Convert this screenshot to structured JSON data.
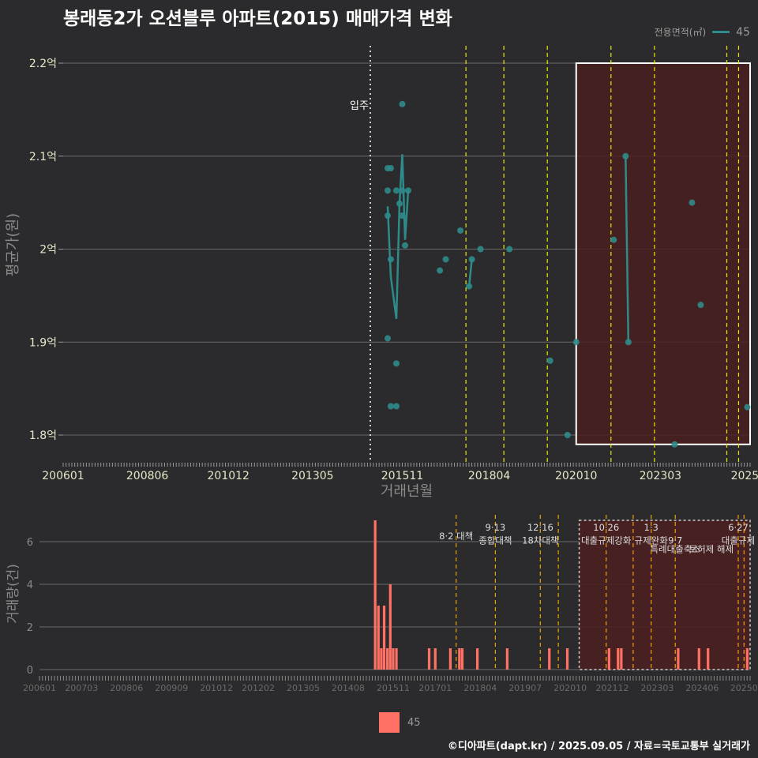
{
  "title": "봉래동2가 오션블루 아파트(2015) 매매가격 변화",
  "legend": {
    "title": "전용면적(㎡)",
    "label": "45"
  },
  "footer": "©디아파트(dapt.kr) / 2025.09.05 / 자료=국토교통부 실거래가",
  "colors": {
    "bg": "#2b2b2d",
    "price": "#2e8b8b",
    "volume": "#ff7065",
    "policy_top": "#e8e800",
    "policy_bottom": "#f0a000",
    "highlight_fill": "#4a1f20"
  },
  "chart_data": [
    {
      "type": "scatter",
      "name": "price",
      "title": "봉래동2가 오션블루 아파트(2015) 매매가격 변화",
      "xlabel": "거래년월",
      "ylabel": "평균가(원)",
      "xlim": [
        2006.0,
        2025.75
      ],
      "ylim": [
        1.77,
        2.23
      ],
      "x_ticks": [
        {
          "x": 2006.0,
          "label": "200601"
        },
        {
          "x": 2008.42,
          "label": "200806"
        },
        {
          "x": 2010.75,
          "label": "201012"
        },
        {
          "x": 2013.17,
          "label": "201305"
        },
        {
          "x": 2015.75,
          "label": "201511"
        },
        {
          "x": 2018.25,
          "label": "201804"
        },
        {
          "x": 2020.75,
          "label": "202010"
        },
        {
          "x": 2023.17,
          "label": "202303"
        },
        {
          "x": 2025.6,
          "label": "2025"
        }
      ],
      "y_ticks": [
        {
          "y": 1.8,
          "label": "1.8억"
        },
        {
          "y": 1.9,
          "label": "1.9억"
        },
        {
          "y": 2.0,
          "label": "2억"
        },
        {
          "y": 2.1,
          "label": "2.1억"
        },
        {
          "y": 2.2,
          "label": "2.2억"
        }
      ],
      "points": [
        {
          "x": 2015.33,
          "y": 2.036
        },
        {
          "x": 2015.33,
          "y": 2.063
        },
        {
          "x": 2015.33,
          "y": 2.087
        },
        {
          "x": 2015.33,
          "y": 1.904
        },
        {
          "x": 2015.42,
          "y": 2.087
        },
        {
          "x": 2015.42,
          "y": 1.989
        },
        {
          "x": 2015.42,
          "y": 1.831
        },
        {
          "x": 2015.58,
          "y": 1.831
        },
        {
          "x": 2015.58,
          "y": 1.877
        },
        {
          "x": 2015.58,
          "y": 2.063
        },
        {
          "x": 2015.67,
          "y": 2.049
        },
        {
          "x": 2015.75,
          "y": 2.036
        },
        {
          "x": 2015.75,
          "y": 2.063
        },
        {
          "x": 2015.75,
          "y": 2.156
        },
        {
          "x": 2015.83,
          "y": 2.004
        },
        {
          "x": 2015.92,
          "y": 2.063
        },
        {
          "x": 2016.83,
          "y": 1.977
        },
        {
          "x": 2017.0,
          "y": 1.989
        },
        {
          "x": 2017.42,
          "y": 2.02
        },
        {
          "x": 2017.67,
          "y": 1.96
        },
        {
          "x": 2017.75,
          "y": 1.989
        },
        {
          "x": 2018.0,
          "y": 2.0
        },
        {
          "x": 2018.83,
          "y": 2.0
        },
        {
          "x": 2020.0,
          "y": 1.88
        },
        {
          "x": 2020.5,
          "y": 1.8
        },
        {
          "x": 2020.75,
          "y": 1.9
        },
        {
          "x": 2021.83,
          "y": 2.01
        },
        {
          "x": 2022.17,
          "y": 2.1
        },
        {
          "x": 2022.25,
          "y": 1.9
        },
        {
          "x": 2023.58,
          "y": 1.79
        },
        {
          "x": 2024.08,
          "y": 2.05
        },
        {
          "x": 2024.33,
          "y": 1.94
        },
        {
          "x": 2025.67,
          "y": 1.83
        }
      ],
      "line": [
        {
          "x": 2015.33,
          "y": 2.046
        },
        {
          "x": 2015.42,
          "y": 1.97
        },
        {
          "x": 2015.58,
          "y": 1.925
        },
        {
          "x": 2015.67,
          "y": 2.049
        },
        {
          "x": 2015.75,
          "y": 2.102
        },
        {
          "x": 2015.83,
          "y": 2.01
        },
        {
          "x": 2015.92,
          "y": 2.063
        },
        null,
        {
          "x": 2017.67,
          "y": 1.96
        },
        {
          "x": 2017.75,
          "y": 1.989
        },
        null,
        {
          "x": 2022.17,
          "y": 2.1
        },
        {
          "x": 2022.25,
          "y": 1.9
        }
      ],
      "annotation": {
        "x": 2014.83,
        "y": 2.155,
        "text": "입주"
      },
      "construction_line_x": 2014.83,
      "policy_lines_x": [
        2017.58,
        2018.67,
        2019.92,
        2021.75,
        2023.0,
        2025.08,
        2025.42
      ],
      "highlight": {
        "x0": 2020.75,
        "x1": 2025.75,
        "y0": 1.79,
        "y1": 2.2
      }
    },
    {
      "type": "bar",
      "name": "volume",
      "ylabel": "거래량(건)",
      "xlim": [
        2006.0,
        2025.75
      ],
      "ylim": [
        0,
        7.2
      ],
      "y_ticks": [
        {
          "y": 0,
          "label": "0"
        },
        {
          "y": 2,
          "label": "2"
        },
        {
          "y": 4,
          "label": "4"
        },
        {
          "y": 6,
          "label": "6"
        }
      ],
      "x_ticks": [
        {
          "x": 2006.0,
          "label": "200601"
        },
        {
          "x": 2007.17,
          "label": "200703"
        },
        {
          "x": 2008.42,
          "label": "200806"
        },
        {
          "x": 2009.67,
          "label": "200909"
        },
        {
          "x": 2010.92,
          "label": "201012"
        },
        {
          "x": 2012.08,
          "label": "201202"
        },
        {
          "x": 2013.33,
          "label": "201305"
        },
        {
          "x": 2014.58,
          "label": "201408"
        },
        {
          "x": 2015.83,
          "label": "201511"
        },
        {
          "x": 2017.0,
          "label": "201701"
        },
        {
          "x": 2018.25,
          "label": "201804"
        },
        {
          "x": 2019.5,
          "label": "201907"
        },
        {
          "x": 2020.75,
          "label": "202010"
        },
        {
          "x": 2021.92,
          "label": "202112"
        },
        {
          "x": 2023.17,
          "label": "202303"
        },
        {
          "x": 2024.42,
          "label": "202406"
        },
        {
          "x": 2025.58,
          "label": "20250"
        }
      ],
      "bars": [
        {
          "x": 2015.33,
          "v": 7
        },
        {
          "x": 2015.42,
          "v": 3
        },
        {
          "x": 2015.5,
          "v": 1
        },
        {
          "x": 2015.58,
          "v": 3
        },
        {
          "x": 2015.67,
          "v": 1
        },
        {
          "x": 2015.75,
          "v": 4
        },
        {
          "x": 2015.83,
          "v": 1
        },
        {
          "x": 2015.92,
          "v": 1
        },
        {
          "x": 2016.83,
          "v": 1
        },
        {
          "x": 2017.0,
          "v": 1
        },
        {
          "x": 2017.42,
          "v": 1
        },
        {
          "x": 2017.67,
          "v": 1
        },
        {
          "x": 2017.75,
          "v": 1
        },
        {
          "x": 2018.17,
          "v": 1
        },
        {
          "x": 2019.0,
          "v": 1
        },
        {
          "x": 2020.17,
          "v": 1
        },
        {
          "x": 2020.67,
          "v": 1
        },
        {
          "x": 2021.83,
          "v": 1
        },
        {
          "x": 2022.08,
          "v": 1
        },
        {
          "x": 2022.17,
          "v": 1
        },
        {
          "x": 2023.75,
          "v": 1
        },
        {
          "x": 2024.33,
          "v": 1
        },
        {
          "x": 2024.58,
          "v": 1
        },
        {
          "x": 2025.67,
          "v": 1
        }
      ],
      "policy_lines_x": [
        2017.58,
        2018.67,
        2019.92,
        2020.42,
        2021.75,
        2022.5,
        2023.0,
        2023.67,
        2025.42,
        2025.58
      ],
      "policy_labels": [
        {
          "x": 2017.58,
          "row": 1,
          "text": "8·2 대책"
        },
        {
          "x": 2018.67,
          "row": 0,
          "text": "9·13"
        },
        {
          "x": 2018.67,
          "row": 1.5,
          "text": "종합대책"
        },
        {
          "x": 2019.92,
          "row": 0,
          "text": "12·16"
        },
        {
          "x": 2019.92,
          "row": 1.5,
          "text": "18차대책"
        },
        {
          "x": 2021.75,
          "row": 0,
          "text": "10·26"
        },
        {
          "x": 2021.75,
          "row": 1.5,
          "text": "대출규제강화"
        },
        {
          "x": 2023.0,
          "row": 0,
          "text": "1·3"
        },
        {
          "x": 2023.0,
          "row": 1.5,
          "text": "규제완화"
        },
        {
          "x": 2023.67,
          "row": 1.5,
          "text": "9·7"
        },
        {
          "x": 2023.67,
          "row": 2.5,
          "text": "특례대출축소"
        },
        {
          "x": 2024.67,
          "row": 2.5,
          "text": "토허제 해제"
        },
        {
          "x": 2025.42,
          "row": 0,
          "text": "6·27"
        },
        {
          "x": 2025.42,
          "row": 1.5,
          "text": "대출규제"
        }
      ],
      "highlight": {
        "x0": 2021.0,
        "x1": 2025.75,
        "y0": 0,
        "y1": 7.0
      }
    }
  ]
}
